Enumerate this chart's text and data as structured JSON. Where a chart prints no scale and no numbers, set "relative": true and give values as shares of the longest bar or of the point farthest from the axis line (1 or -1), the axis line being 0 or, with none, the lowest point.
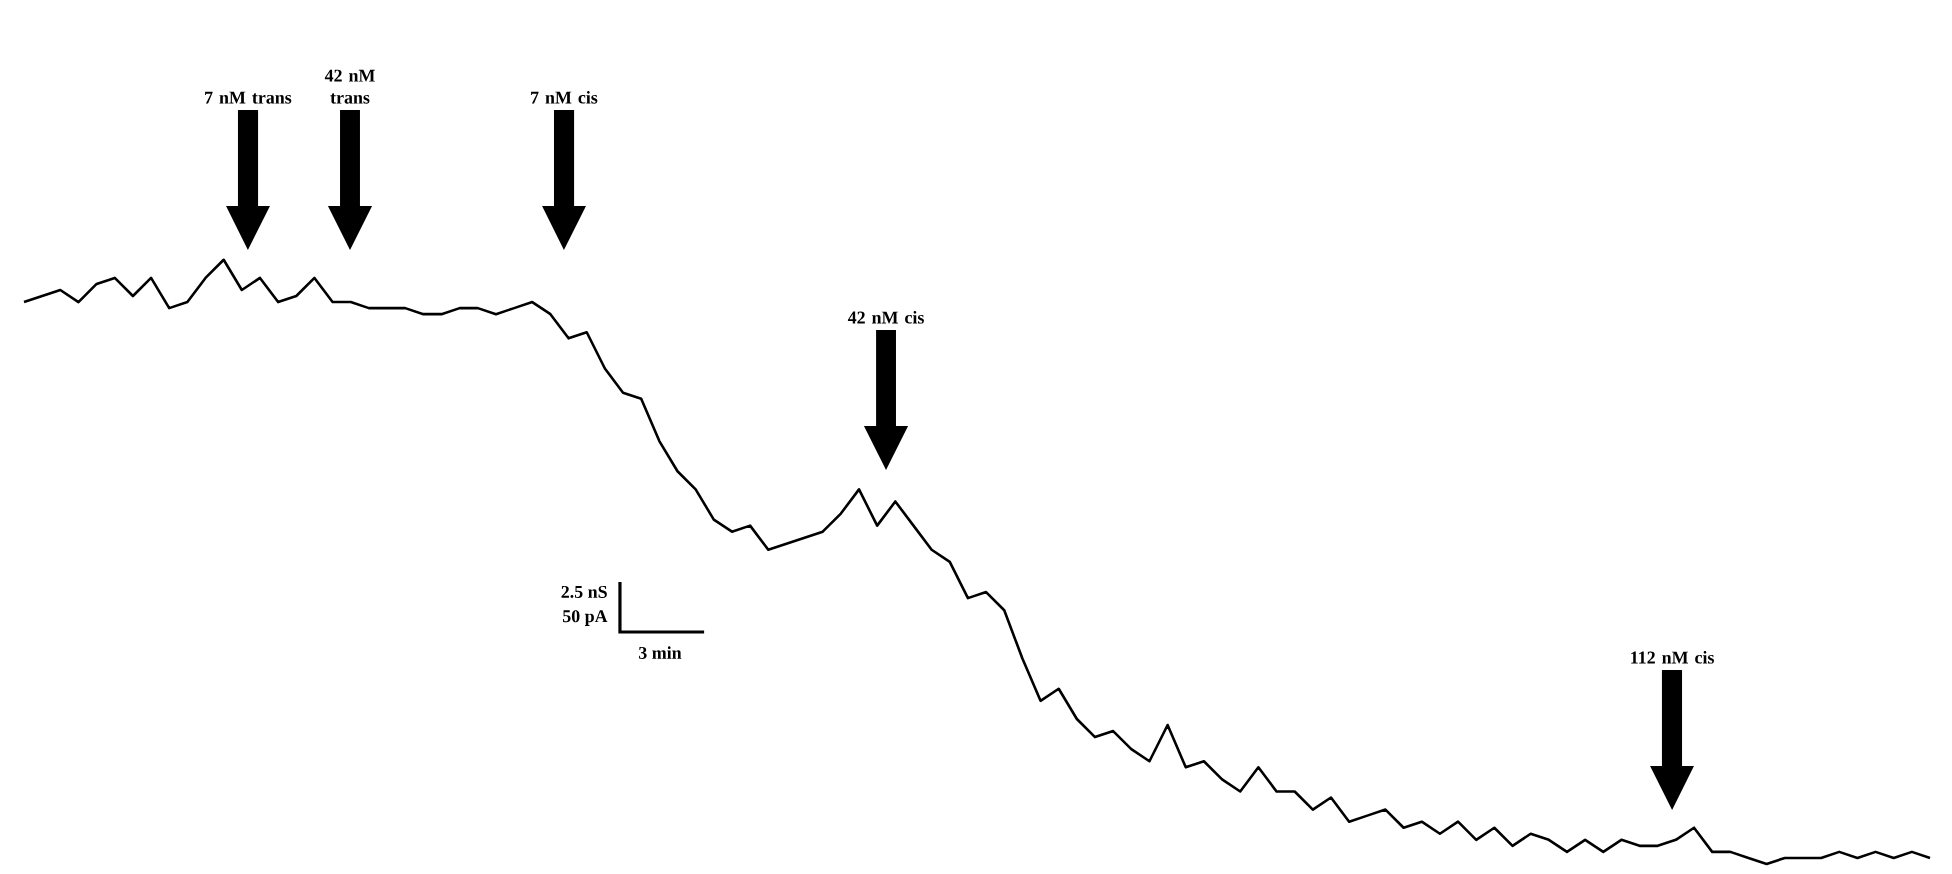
{
  "chart_data": {
    "type": "line",
    "relative": true,
    "color": "#000000",
    "categories": [
      null,
      null,
      null,
      null,
      null,
      null,
      null,
      null,
      null,
      null,
      null,
      null,
      null,
      null,
      null,
      null,
      null,
      null,
      null,
      null,
      null,
      null,
      null,
      null,
      null,
      null,
      null,
      null,
      null,
      null,
      null,
      null,
      null,
      null,
      null,
      null,
      null,
      null,
      null,
      null,
      null,
      null,
      null,
      null,
      null,
      null,
      null,
      null,
      null,
      null,
      null,
      null,
      null,
      null,
      null,
      null,
      null,
      null,
      null,
      null,
      null,
      null,
      null,
      null,
      null,
      null,
      null,
      null,
      null,
      null,
      null,
      null,
      null,
      null,
      null,
      null,
      null,
      null,
      null,
      null,
      null,
      null,
      null,
      null,
      null,
      null,
      null,
      null,
      null,
      null,
      null,
      null,
      null,
      null,
      null,
      null,
      null,
      null,
      null,
      null,
      null,
      null,
      null,
      null,
      null,
      null
    ],
    "values": [
      0.93,
      0.94,
      0.95,
      0.93,
      0.96,
      0.97,
      0.94,
      0.97,
      0.92,
      0.93,
      0.97,
      1.0,
      0.95,
      0.97,
      0.93,
      0.94,
      0.97,
      0.93,
      0.93,
      0.92,
      0.92,
      0.92,
      0.91,
      0.91,
      0.92,
      0.92,
      0.91,
      0.92,
      0.93,
      0.91,
      0.87,
      0.88,
      0.82,
      0.78,
      0.77,
      0.7,
      0.65,
      0.62,
      0.57,
      0.55,
      0.56,
      0.52,
      0.53,
      0.54,
      0.55,
      0.58,
      0.62,
      0.56,
      0.6,
      0.56,
      0.52,
      0.5,
      0.44,
      0.45,
      0.42,
      0.34,
      0.27,
      0.29,
      0.24,
      0.21,
      0.22,
      0.19,
      0.17,
      0.23,
      0.16,
      0.17,
      0.14,
      0.12,
      0.16,
      0.12,
      0.12,
      0.09,
      0.11,
      0.07,
      0.08,
      0.09,
      0.06,
      0.07,
      0.05,
      0.07,
      0.04,
      0.06,
      0.03,
      0.05,
      0.04,
      0.02,
      0.04,
      0.02,
      0.04,
      0.03,
      0.03,
      0.04,
      0.06,
      0.02,
      0.02,
      0.01,
      0,
      0.01,
      0.01,
      0.01,
      0.02,
      0.01,
      0.02,
      0.01,
      0.02,
      0.01
    ],
    "annotations": [
      "7 nM trans",
      "42 nM trans",
      "7 nM cis",
      "42 nM cis",
      "112 nM cis",
      "2.5 nS",
      "50 pA",
      "3 min"
    ]
  }
}
